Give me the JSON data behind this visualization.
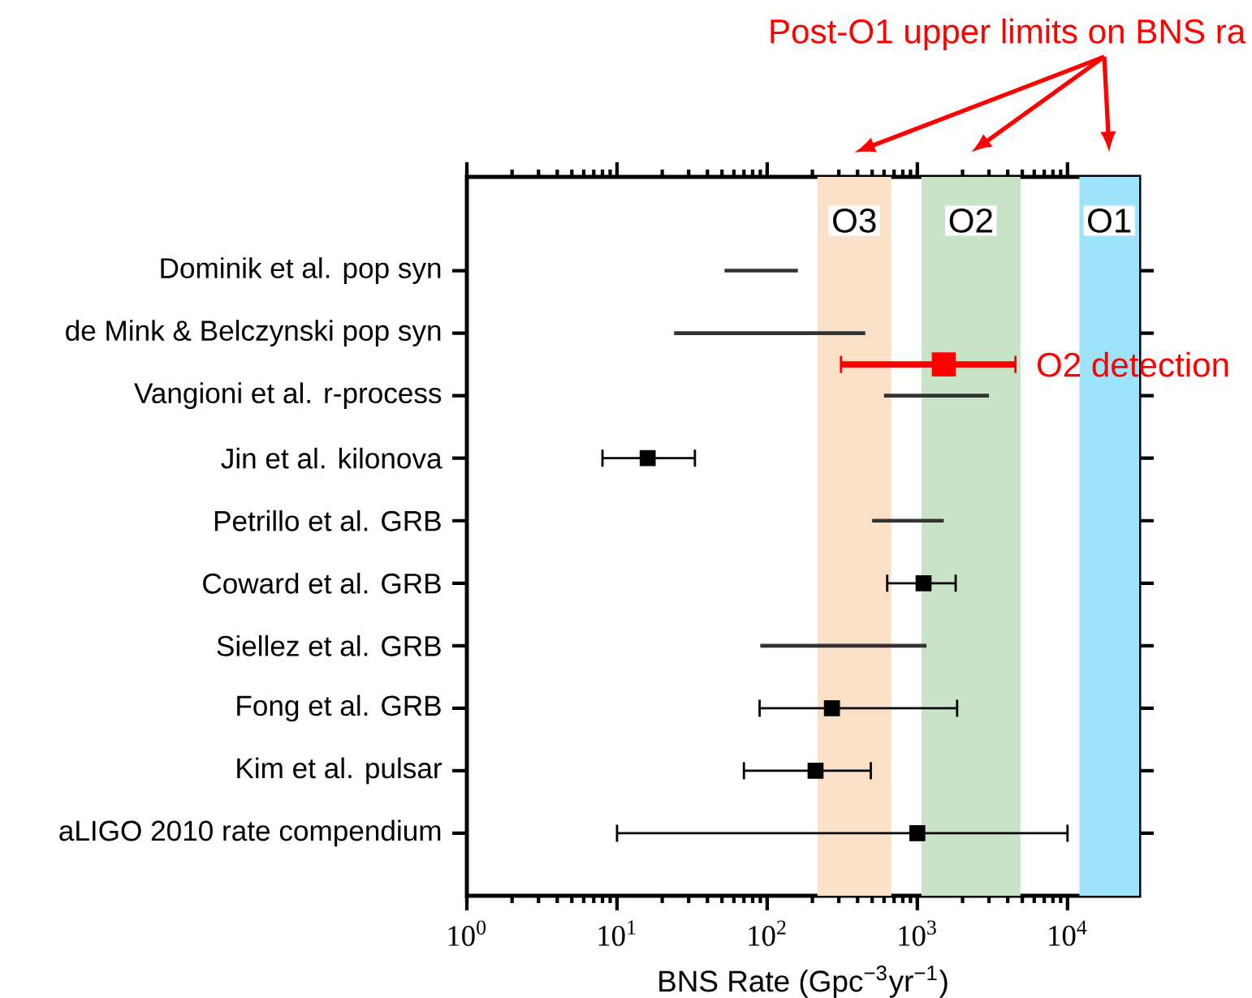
{
  "chart_data": {
    "type": "scatter",
    "orientation": "horizontal",
    "xlabel": "BNS Rate (Gpc$^{−3}$yr$^{−1}$)",
    "log": "x",
    "xlim": [
      1,
      30000
    ],
    "xticks": [
      {
        "value": 1,
        "label": "10$^{0}$"
      },
      {
        "value": 10,
        "label": "10$^{1}$"
      },
      {
        "value": 100,
        "label": "10$^{2}$"
      },
      {
        "value": 1000,
        "label": "10$^{3}$"
      },
      {
        "value": 10000,
        "label": "10$^{4}$"
      }
    ],
    "categories": [
      "Dominik et al. pop syn",
      null,
      "de Mink & Belczynski pop syn",
      null,
      "Vangioni et al. r-process",
      null,
      "Jin et al. kilonova",
      null,
      "Petrillo et al. GRB",
      null,
      "Coward et al. GRB",
      null,
      "Siellez et al. GRB",
      null,
      "Fong et al. GRB",
      null,
      "Kim et al. pulsar",
      null,
      "aLIGO 2010 rate compendium"
    ],
    "series": [
      {
        "type": "bar",
        "color": "#333333",
        "base": [
          52,
          null,
          24,
          null,
          600,
          null,
          null,
          null,
          500,
          null,
          null,
          null,
          90,
          null,
          null,
          null,
          null,
          null,
          null
        ],
        "values": [
          108,
          null,
          426,
          null,
          2400,
          null,
          null,
          null,
          1000,
          null,
          null,
          null,
          1060,
          null,
          null,
          null,
          null,
          null,
          null
        ]
      },
      {
        "color": "#000000",
        "marker": "square",
        "values": [
          null,
          null,
          null,
          null,
          null,
          null,
          16,
          null,
          null,
          null,
          1100,
          null,
          null,
          null,
          270,
          null,
          210,
          null,
          1000
        ],
        "errors": [
          null,
          null,
          null,
          null,
          null,
          null,
          [
            8,
            33
          ],
          null,
          null,
          null,
          [
            630,
            1800
          ],
          null,
          null,
          null,
          [
            89,
            1840
          ],
          null,
          [
            70,
            490
          ],
          null,
          [
            10,
            10000
          ]
        ]
      },
      {
        "name": "O2 detection",
        "color": "#ff0000",
        "marker": "square",
        "values": [
          null,
          null,
          null,
          1500,
          null,
          null,
          null,
          null,
          null,
          null,
          null,
          null,
          null,
          null,
          null,
          null,
          null,
          null,
          null
        ],
        "errors": [
          null,
          null,
          null,
          [
            310,
            4500
          ],
          null,
          null,
          null,
          null,
          null,
          null,
          null,
          null,
          null,
          null,
          null,
          null,
          null,
          null,
          null
        ]
      }
    ],
    "bands": [
      {
        "axis": "x",
        "from": 216,
        "to": 670,
        "label": "O3",
        "color": "#fbe0c8"
      },
      {
        "axis": "x",
        "from": 1065,
        "to": 4860,
        "label": "O2",
        "color": "#c8e3c8"
      },
      {
        "axis": "x",
        "from": 12000,
        "to": 30000,
        "label": "O1",
        "color": "#9de3fc"
      }
    ],
    "annotations": [
      "Post-O1 upper limits on  BNS ra"
    ]
  }
}
